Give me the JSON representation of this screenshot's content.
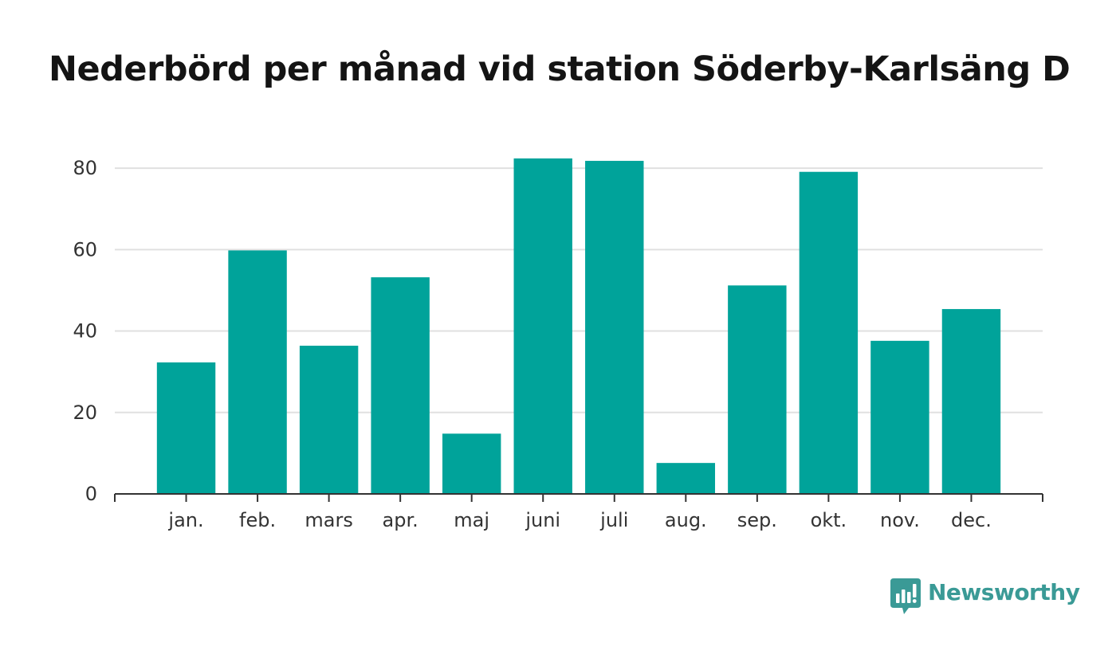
{
  "chart_data": {
    "type": "bar",
    "title": "Nederbörd per månad vid station Söderby-Karlsäng D",
    "xlabel": "",
    "ylabel": "",
    "categories": [
      "jan.",
      "feb.",
      "mars",
      "apr.",
      "maj",
      "juni",
      "juli",
      "aug.",
      "sep.",
      "okt.",
      "nov.",
      "dec."
    ],
    "values": [
      32.3,
      59.8,
      36.4,
      53.2,
      14.8,
      82.4,
      81.8,
      7.6,
      51.2,
      79.1,
      37.6,
      45.4
    ],
    "ylim": [
      0,
      90
    ],
    "yticks": [
      0,
      20,
      40,
      60,
      80
    ],
    "grid": true,
    "legend": "none",
    "bar_color": "#00a39a"
  },
  "brand": {
    "name": "Newsworthy",
    "icon": "newsworthy-logo-icon",
    "color": "#3a9a96"
  }
}
